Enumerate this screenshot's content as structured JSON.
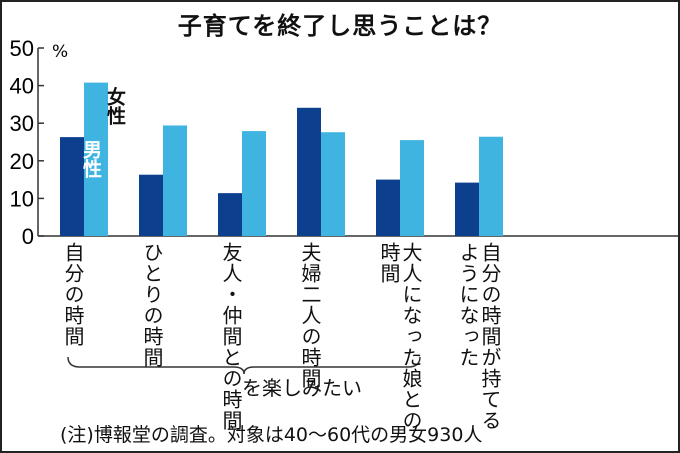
{
  "chart_data": {
    "type": "bar",
    "title": "子育てを終了し思うことは？",
    "ylabel": "%",
    "ylim": [
      0,
      50
    ],
    "yticks": [
      0,
      10,
      20,
      30,
      40,
      50
    ],
    "categories": [
      "自分の時間",
      "ひとりの時間",
      "友人・仲間との時間",
      "夫婦二人の時間",
      "大人になった娘との時間",
      "自分の時間が持てるようになった"
    ],
    "series": [
      {
        "name": "男性",
        "color": "#0d3f8f",
        "values": [
          26.3,
          16.3,
          11.4,
          34.1,
          15.0,
          14.2
        ]
      },
      {
        "name": "女性",
        "color": "#3fb4e0",
        "values": [
          40.8,
          29.4,
          27.9,
          27.6,
          25.5,
          26.4
        ]
      }
    ],
    "bracket_label": "を楽しみたい",
    "note": "(注)博報堂の調査。対象は40～60代の男女930人",
    "grid": false,
    "legend": "inside-bars"
  }
}
